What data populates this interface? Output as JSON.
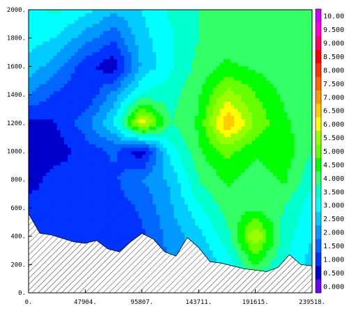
{
  "chart_data": {
    "type": "heatmap",
    "title": "",
    "xlabel": "",
    "ylabel": "",
    "x_ticks": [
      "0.",
      "47904.",
      "95807.",
      "143711.",
      "191615.",
      "239518."
    ],
    "y_ticks": [
      "0.",
      "200.",
      "400.",
      "600.",
      "800.",
      "1000.",
      "1200.",
      "1400.",
      "1600.",
      "1800.",
      "2000."
    ],
    "xlim": [
      0,
      239518
    ],
    "ylim": [
      0,
      2000
    ],
    "colorbar": {
      "levels": [
        "0.000",
        "0.500",
        "1.000",
        "1.500",
        "2.000",
        "2.500",
        "3.000",
        "3.500",
        "4.000",
        "4.500",
        "5.000",
        "5.500",
        "6.000",
        "6.500",
        "7.000",
        "7.500",
        "8.000",
        "8.500",
        "9.000",
        "9.500",
        "10.00"
      ],
      "colors": [
        "#6a00ff",
        "#0000cc",
        "#0033ff",
        "#0066ff",
        "#0099ff",
        "#00ccff",
        "#00ffff",
        "#00ffcc",
        "#33ff66",
        "#00ff00",
        "#66ff00",
        "#99ff00",
        "#ffff00",
        "#ffcc00",
        "#ff9900",
        "#ff6600",
        "#ff3300",
        "#ff0000",
        "#ff0066",
        "#ff00cc",
        "#cc00ff"
      ]
    },
    "terrain_profile": [
      [
        0,
        560
      ],
      [
        9600,
        420
      ],
      [
        19000,
        410
      ],
      [
        28700,
        385
      ],
      [
        38300,
        360
      ],
      [
        47900,
        350
      ],
      [
        57500,
        370
      ],
      [
        67100,
        310
      ],
      [
        76600,
        290
      ],
      [
        86200,
        360
      ],
      [
        95800,
        420
      ],
      [
        105400,
        380
      ],
      [
        115000,
        290
      ],
      [
        124500,
        260
      ],
      [
        134100,
        390
      ],
      [
        143700,
        320
      ],
      [
        153300,
        220
      ],
      [
        162900,
        210
      ],
      [
        172500,
        190
      ],
      [
        182100,
        170
      ],
      [
        191600,
        160
      ],
      [
        201200,
        150
      ],
      [
        210800,
        180
      ],
      [
        220400,
        270
      ],
      [
        230000,
        200
      ],
      [
        239518,
        190
      ]
    ],
    "field_sample_note": "",
    "field": {
      "x": [
        0,
        23952,
        47904,
        71855,
        95807,
        119759,
        143711,
        167663,
        191615,
        215566,
        239518
      ],
      "y": [
        0,
        200,
        400,
        600,
        800,
        1000,
        1200,
        1400,
        1600,
        1800,
        2000
      ],
      "values": [
        [
          2.2,
          2.0,
          1.8,
          1.6,
          1.8,
          2.0,
          2.5,
          3.0,
          3.2,
          3.0,
          2.5
        ],
        [
          2.0,
          1.8,
          1.6,
          1.4,
          1.6,
          2.0,
          2.5,
          3.2,
          4.5,
          3.5,
          2.8
        ],
        [
          1.6,
          1.4,
          1.2,
          1.0,
          1.4,
          2.2,
          2.8,
          3.8,
          6.0,
          3.8,
          3.0
        ],
        [
          1.2,
          1.0,
          1.0,
          1.2,
          1.6,
          2.4,
          3.4,
          4.2,
          4.4,
          4.0,
          3.2
        ],
        [
          0.8,
          1.2,
          1.0,
          1.4,
          2.0,
          2.6,
          4.0,
          4.6,
          4.2,
          4.6,
          3.6
        ],
        [
          0.6,
          0.8,
          1.2,
          1.6,
          0.6,
          3.2,
          4.4,
          5.2,
          4.6,
          4.8,
          4.0
        ],
        [
          0.8,
          1.0,
          1.8,
          3.0,
          6.4,
          4.0,
          4.6,
          7.0,
          5.4,
          4.6,
          4.2
        ],
        [
          2.0,
          1.4,
          1.0,
          2.2,
          3.6,
          3.8,
          4.4,
          5.8,
          5.0,
          4.4,
          4.0
        ],
        [
          2.8,
          2.2,
          1.2,
          0.6,
          2.6,
          3.4,
          4.2,
          4.6,
          4.4,
          4.2,
          4.0
        ],
        [
          3.2,
          3.0,
          2.2,
          1.6,
          2.8,
          3.4,
          4.0,
          4.2,
          4.2,
          4.0,
          4.2
        ],
        [
          3.4,
          3.6,
          3.2,
          2.6,
          3.0,
          3.6,
          4.0,
          4.2,
          4.0,
          4.0,
          4.2
        ]
      ]
    },
    "hatched_region": "terrain",
    "grid": false,
    "legend": "colorbar-right"
  }
}
